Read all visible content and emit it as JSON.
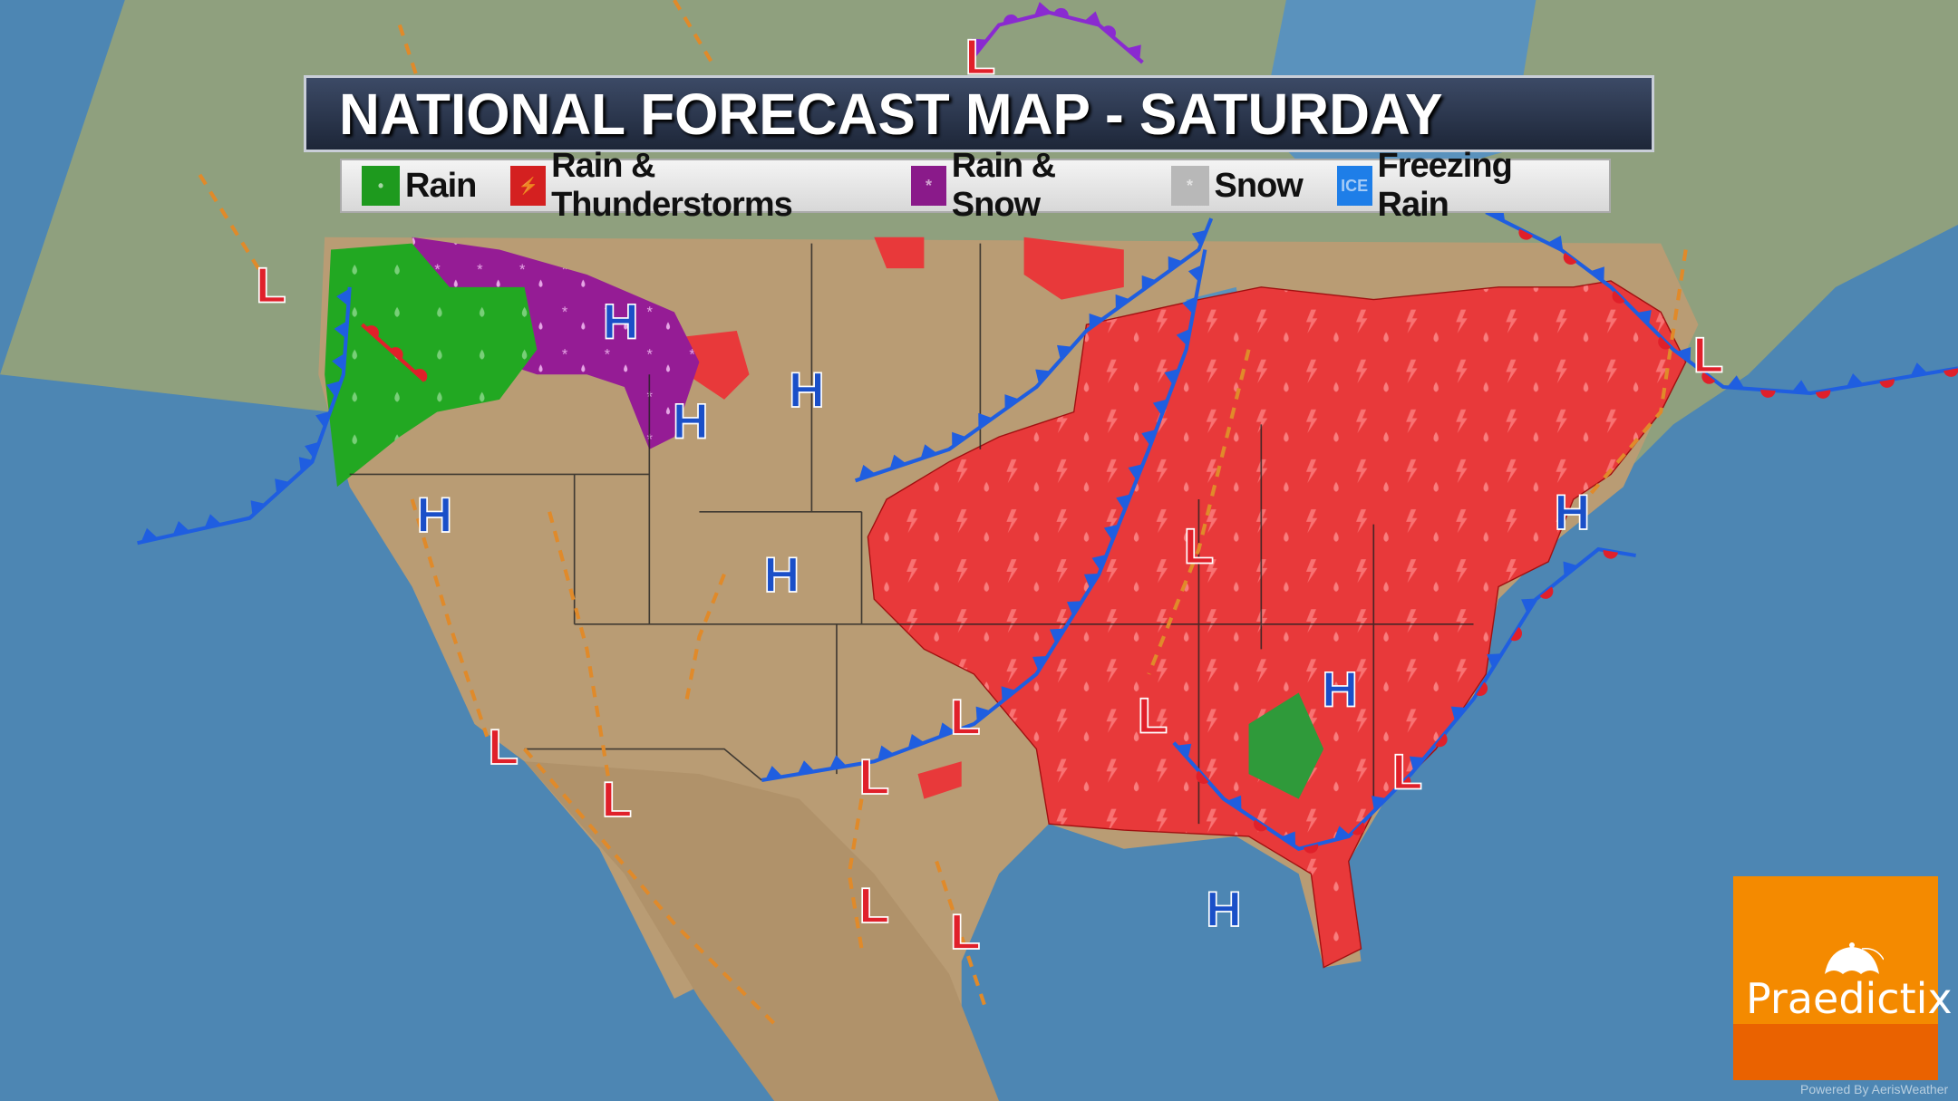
{
  "title": "NATIONAL FORECAST MAP - SATURDAY",
  "legend": [
    {
      "label": "Rain",
      "color": "#1e9a1e",
      "icon": "raindrop-icon"
    },
    {
      "label": "Rain & Thunderstorms",
      "color": "#d42020",
      "icon": "lightning-icon"
    },
    {
      "label": "Rain & Snow",
      "color": "#8a1a8a",
      "icon": "snowflake-icon"
    },
    {
      "label": "Snow",
      "color": "#b8b8b8",
      "icon": "snowflake-icon"
    },
    {
      "label": "Freezing Rain",
      "color": "#1e7ee8",
      "icon": "ice-icon",
      "badge": "ICE"
    }
  ],
  "markers": {
    "high": "H",
    "low": "L",
    "high_color": "#1a4fc8",
    "low_color": "#e0202a"
  },
  "colors": {
    "ocean": "#4d86b3",
    "land": "#b99c74",
    "canada": "#8fa07e",
    "cold_front": "#1f5ee0",
    "warm_front": "#e0202a",
    "trough": "#e08a2a",
    "thunderstorms": "#e8393a",
    "rain": "#22a822",
    "rain_snow": "#951c95"
  },
  "logo": {
    "name": "Praedictix",
    "powered_by": "Powered By AerisWeather"
  }
}
